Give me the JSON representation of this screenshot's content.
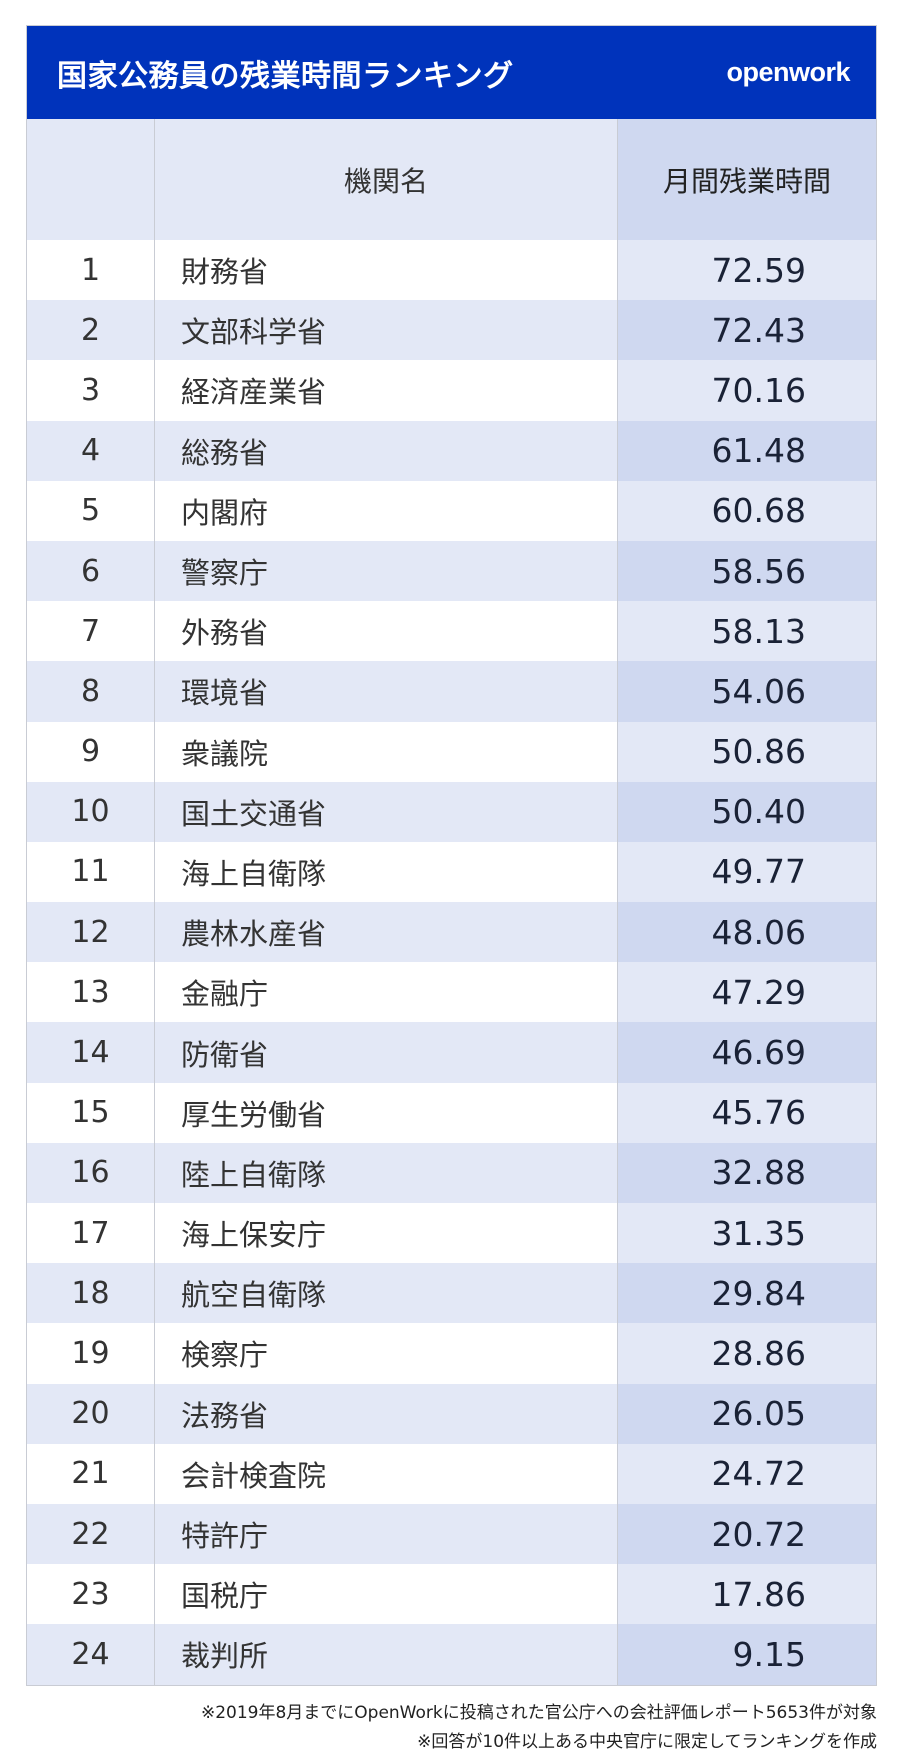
{
  "header": {
    "title": "国家公務員の残業時間ランキング",
    "logo": "openwork",
    "brand_color": "#0033bb"
  },
  "columns": {
    "rank": "",
    "name": "機関名",
    "value": "月間残業時間"
  },
  "rows": [
    {
      "rank": "1",
      "name": "財務省",
      "value": "72.59"
    },
    {
      "rank": "2",
      "name": "文部科学省",
      "value": "72.43"
    },
    {
      "rank": "3",
      "name": "経済産業省",
      "value": "70.16"
    },
    {
      "rank": "4",
      "name": "総務省",
      "value": "61.48"
    },
    {
      "rank": "5",
      "name": "内閣府",
      "value": "60.68"
    },
    {
      "rank": "6",
      "name": "警察庁",
      "value": "58.56"
    },
    {
      "rank": "7",
      "name": "外務省",
      "value": "58.13"
    },
    {
      "rank": "8",
      "name": "環境省",
      "value": "54.06"
    },
    {
      "rank": "9",
      "name": "衆議院",
      "value": "50.86"
    },
    {
      "rank": "10",
      "name": "国土交通省",
      "value": "50.40"
    },
    {
      "rank": "11",
      "name": "海上自衛隊",
      "value": "49.77"
    },
    {
      "rank": "12",
      "name": "農林水産省",
      "value": "48.06"
    },
    {
      "rank": "13",
      "name": "金融庁",
      "value": "47.29"
    },
    {
      "rank": "14",
      "name": "防衛省",
      "value": "46.69"
    },
    {
      "rank": "15",
      "name": "厚生労働省",
      "value": "45.76"
    },
    {
      "rank": "16",
      "name": "陸上自衛隊",
      "value": "32.88"
    },
    {
      "rank": "17",
      "name": "海上保安庁",
      "value": "31.35"
    },
    {
      "rank": "18",
      "name": "航空自衛隊",
      "value": "29.84"
    },
    {
      "rank": "19",
      "name": "検察庁",
      "value": "28.86"
    },
    {
      "rank": "20",
      "name": "法務省",
      "value": "26.05"
    },
    {
      "rank": "21",
      "name": "会計検査院",
      "value": "24.72"
    },
    {
      "rank": "22",
      "name": "特許庁",
      "value": "20.72"
    },
    {
      "rank": "23",
      "name": "国税庁",
      "value": "17.86"
    },
    {
      "rank": "24",
      "name": "裁判所",
      "value": "9.15"
    }
  ],
  "notes": [
    "※2019年8月までにOpenWorkに投稿された官公庁への会社評価レポート5653件が対象",
    "※回答が10件以上ある中央官庁に限定してランキングを作成"
  ]
}
